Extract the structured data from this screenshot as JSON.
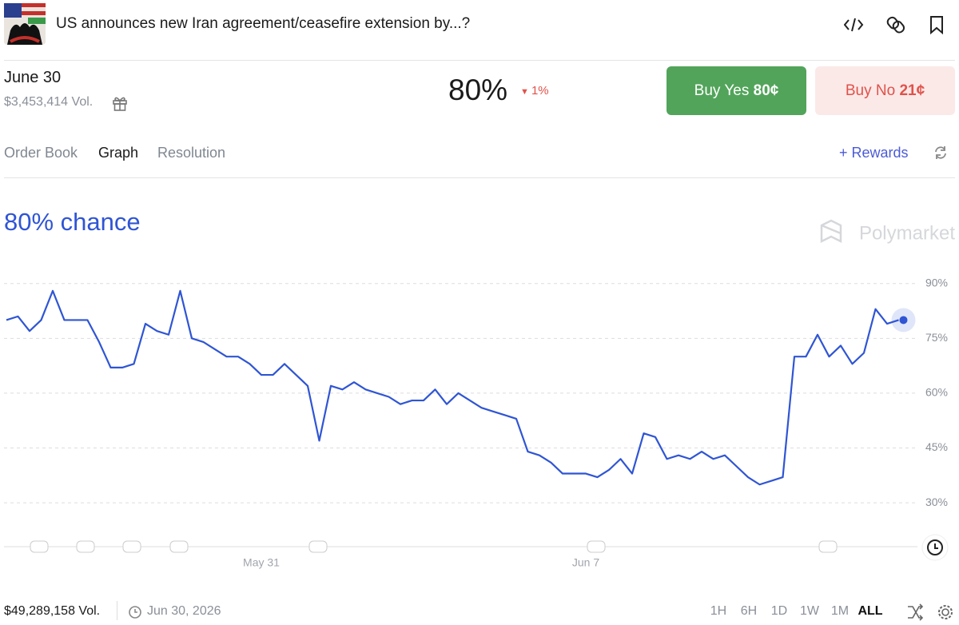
{
  "header": {
    "title": "US announces new Iran agreement/ceasefire extension by...?"
  },
  "market": {
    "outcome": "June 30",
    "volume": "$3,453,414 Vol.",
    "probability": "80%",
    "change": "1%",
    "buy_yes": {
      "label": "Buy Yes",
      "price": "80¢"
    },
    "buy_no": {
      "label": "Buy No",
      "price": "21¢"
    }
  },
  "tabs": [
    "Order Book",
    "Graph",
    "Resolution"
  ],
  "rewards": "Rewards",
  "chart_data": {
    "type": "line",
    "title": "80% chance",
    "watermark": "Polymarket",
    "color": "#2f55d4",
    "categories": [
      null,
      null,
      null,
      null,
      null,
      null,
      null,
      null,
      null,
      null,
      null,
      null,
      null,
      null,
      null,
      null,
      null,
      null,
      null,
      null,
      null,
      null,
      "May 31",
      null,
      null,
      null,
      null,
      null,
      null,
      null,
      null,
      null,
      null,
      null,
      null,
      null,
      null,
      null,
      null,
      null,
      null,
      null,
      null,
      null,
      null,
      null,
      null,
      null,
      null,
      null,
      "Jun 7",
      null,
      null,
      null,
      null,
      null,
      null,
      null,
      null,
      null,
      null,
      null,
      null,
      null,
      null,
      null,
      null,
      null,
      null,
      null,
      null,
      null,
      null,
      null,
      null,
      null,
      null,
      null
    ],
    "values": [
      80,
      81,
      77,
      80,
      88,
      80,
      80,
      80,
      74,
      67,
      67,
      68,
      79,
      77,
      76,
      88,
      75,
      74,
      72,
      70,
      70,
      68,
      65,
      65,
      68,
      65,
      62,
      47,
      62,
      61,
      63,
      61,
      60,
      59,
      57,
      58,
      58,
      61,
      57,
      60,
      58,
      56,
      55,
      54,
      53,
      44,
      43,
      41,
      38,
      38,
      38,
      37,
      39,
      42,
      38,
      49,
      48,
      42,
      43,
      42,
      44,
      42,
      43,
      40,
      37,
      35,
      36,
      37,
      70,
      70,
      76,
      70,
      73,
      68,
      71,
      83,
      79,
      80
    ],
    "ylim": [
      18,
      93
    ],
    "yticks": [
      {
        "value": 30,
        "label": "30%"
      },
      {
        "value": 45,
        "label": "45%"
      },
      {
        "value": 60,
        "label": "60%"
      },
      {
        "value": 75,
        "label": "75%"
      },
      {
        "value": 90,
        "label": "90%"
      }
    ],
    "grid": true
  },
  "footer": {
    "volume": "$49,289,158 Vol.",
    "end_date": "Jun 30, 2026",
    "ranges": [
      "1H",
      "6H",
      "1D",
      "1W",
      "1M",
      "ALL"
    ]
  }
}
